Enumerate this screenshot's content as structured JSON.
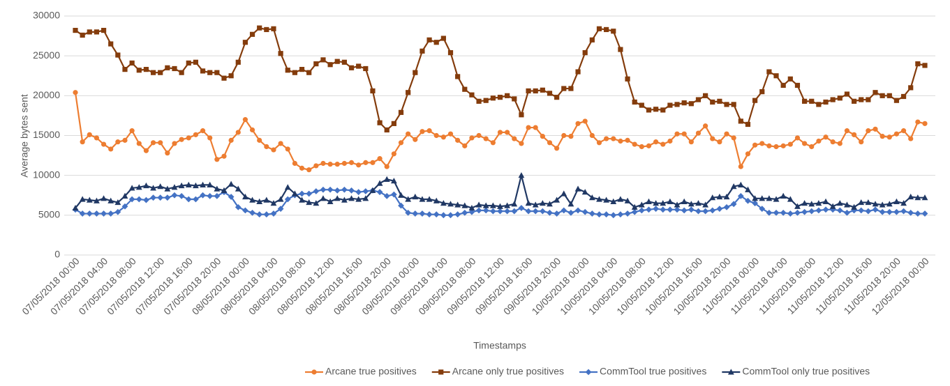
{
  "chart_data": {
    "type": "line",
    "x_label": "Timestamps",
    "y_label": "Average bytes sent",
    "ylim": [
      0,
      30000
    ],
    "yticks": [
      0,
      5000,
      10000,
      15000,
      20000,
      25000,
      30000
    ],
    "grid": true,
    "legend": "bottom",
    "categories": [
      "07/05/2018 00:00",
      null,
      null,
      null,
      "07/05/2018 04:00",
      null,
      null,
      null,
      "07/05/2018 08:00",
      null,
      null,
      null,
      "07/05/2018 12:00",
      null,
      null,
      null,
      "07/05/2018 16:00",
      null,
      null,
      null,
      "07/05/2018 20:00",
      null,
      null,
      null,
      "08/05/2018 00:00",
      null,
      null,
      null,
      "08/05/2018 04:00",
      null,
      null,
      null,
      "08/05/2018 08:00",
      null,
      null,
      null,
      "08/05/2018 12:00",
      null,
      null,
      null,
      "08/05/2018 16:00",
      null,
      null,
      null,
      "08/05/2018 20:00",
      null,
      null,
      null,
      "09/05/2018 00:00",
      null,
      null,
      null,
      "09/05/2018 04:00",
      null,
      null,
      null,
      "09/05/2018 08:00",
      null,
      null,
      null,
      "09/05/2018 12:00",
      null,
      null,
      null,
      "09/05/2018 16:00",
      null,
      null,
      null,
      "09/05/2018 20:00",
      null,
      null,
      null,
      "10/05/2018 00:00",
      null,
      null,
      null,
      "10/05/2018 04:00",
      null,
      null,
      null,
      "10/05/2018 08:00",
      null,
      null,
      null,
      "10/05/2018 12:00",
      null,
      null,
      null,
      "10/05/2018 16:00",
      null,
      null,
      null,
      "10/05/2018 20:00",
      null,
      null,
      null,
      "11/05/2018 00:00",
      null,
      null,
      null,
      "11/05/2018 04:00",
      null,
      null,
      null,
      "11/05/2018 08:00",
      null,
      null,
      null,
      "11/05/2018 12:00",
      null,
      null,
      null,
      "11/05/2018 16:00",
      null,
      null,
      null,
      "11/05/2018 20:00",
      null,
      null,
      null,
      "12/05/2018 00:00"
    ],
    "series": [
      {
        "name": "Arcane true positives",
        "color": "#ED7D31",
        "marker": "circle",
        "values": [
          20400,
          14200,
          15100,
          14700,
          13900,
          13300,
          14200,
          14400,
          15600,
          14000,
          13100,
          14100,
          14100,
          12800,
          14000,
          14500,
          14700,
          15100,
          15600,
          14700,
          12000,
          12400,
          14400,
          15400,
          17000,
          15700,
          14400,
          13600,
          13200,
          14000,
          13300,
          11500,
          10900,
          10700,
          11200,
          11500,
          11400,
          11400,
          11500,
          11600,
          11300,
          11600,
          11600,
          12100,
          11100,
          12700,
          14100,
          15200,
          14500,
          15500,
          15600,
          15000,
          14800,
          15200,
          14400,
          13700,
          14700,
          15000,
          14600,
          14100,
          15400,
          15400,
          14600,
          14000,
          16000,
          16000,
          14900,
          14100,
          13400,
          15000,
          14900,
          16500,
          16800,
          15000,
          14100,
          14600,
          14600,
          14300,
          14400,
          13900,
          13600,
          13700,
          14200,
          13900,
          14300,
          15200,
          15200,
          14200,
          15300,
          16200,
          14600,
          14200,
          15200,
          14700,
          11100,
          12700,
          13800,
          14000,
          13700,
          13600,
          13700,
          13900,
          14700,
          14000,
          13600,
          14300,
          14800,
          14200,
          14000,
          15600,
          15100,
          14200,
          15600,
          15800,
          14900,
          14800,
          15200,
          15600,
          14600,
          16700,
          16500
        ]
      },
      {
        "name": "Arcane only true positives",
        "color": "#843C0C",
        "marker": "square",
        "values": [
          28200,
          27600,
          28000,
          28000,
          28200,
          26500,
          25100,
          23300,
          24100,
          23200,
          23300,
          22900,
          22900,
          23500,
          23400,
          22900,
          24100,
          24200,
          23100,
          22900,
          22900,
          22200,
          22500,
          24200,
          26700,
          27700,
          28500,
          28300,
          28400,
          25300,
          23200,
          22900,
          23300,
          22900,
          24000,
          24500,
          23900,
          24300,
          24200,
          23500,
          23700,
          23400,
          20600,
          16600,
          15700,
          16500,
          17900,
          20400,
          22900,
          25600,
          27000,
          26700,
          27200,
          25400,
          22400,
          20800,
          20100,
          19300,
          19400,
          19700,
          19800,
          20000,
          19600,
          17600,
          20600,
          20600,
          20700,
          20300,
          19800,
          20900,
          20900,
          23000,
          25400,
          27000,
          28400,
          28300,
          28100,
          25800,
          22100,
          19200,
          18800,
          18200,
          18300,
          18200,
          18800,
          18900,
          19100,
          19000,
          19500,
          20000,
          19200,
          19300,
          18900,
          18900,
          16800,
          16400,
          19400,
          20500,
          23000,
          22500,
          21300,
          22100,
          21300,
          19300,
          19300,
          18900,
          19200,
          19500,
          19700,
          20200,
          19300,
          19500,
          19500,
          20400,
          20000,
          20000,
          19400,
          19900,
          21000,
          24000,
          23800
        ]
      },
      {
        "name": "CommTool true positives",
        "color": "#4472C4",
        "marker": "diamond",
        "values": [
          5700,
          5200,
          5200,
          5200,
          5200,
          5200,
          5400,
          6100,
          7000,
          7000,
          6900,
          7200,
          7200,
          7200,
          7500,
          7400,
          7000,
          7000,
          7500,
          7400,
          7400,
          7900,
          7300,
          6000,
          5600,
          5300,
          5100,
          5100,
          5200,
          5800,
          7000,
          7500,
          7700,
          7700,
          8000,
          8200,
          8200,
          8100,
          8200,
          8100,
          7900,
          8000,
          8100,
          7900,
          7400,
          7600,
          6200,
          5300,
          5200,
          5200,
          5100,
          5100,
          5000,
          5000,
          5100,
          5300,
          5400,
          5600,
          5600,
          5500,
          5500,
          5500,
          5500,
          5900,
          5500,
          5500,
          5500,
          5300,
          5200,
          5600,
          5300,
          5600,
          5400,
          5200,
          5100,
          5100,
          5000,
          5100,
          5200,
          5400,
          5600,
          5700,
          5800,
          5700,
          5700,
          5700,
          5600,
          5700,
          5500,
          5500,
          5600,
          5800,
          6000,
          6400,
          7400,
          6800,
          6500,
          5800,
          5300,
          5300,
          5300,
          5200,
          5300,
          5400,
          5500,
          5600,
          5700,
          5700,
          5600,
          5300,
          5600,
          5600,
          5500,
          5700,
          5400,
          5400,
          5400,
          5500,
          5300,
          5200,
          5200
        ]
      },
      {
        "name": "CommTool only true positives",
        "color": "#203864",
        "marker": "triangle",
        "values": [
          5900,
          7000,
          6900,
          6800,
          7100,
          6800,
          6600,
          7400,
          8400,
          8500,
          8700,
          8400,
          8600,
          8300,
          8500,
          8700,
          8800,
          8700,
          8800,
          8800,
          8300,
          8100,
          8900,
          8300,
          7300,
          6900,
          6700,
          6900,
          6500,
          7000,
          8500,
          7700,
          6900,
          6600,
          6500,
          7100,
          6700,
          7100,
          6900,
          7100,
          7000,
          7100,
          8100,
          9000,
          9500,
          9300,
          7500,
          7000,
          7300,
          7000,
          7000,
          6800,
          6500,
          6400,
          6300,
          6200,
          5900,
          6300,
          6200,
          6200,
          6100,
          6200,
          6400,
          10000,
          6500,
          6300,
          6500,
          6400,
          6900,
          7700,
          6400,
          8300,
          7900,
          7200,
          7000,
          6900,
          6700,
          7000,
          6800,
          6000,
          6300,
          6700,
          6500,
          6500,
          6700,
          6300,
          6700,
          6400,
          6500,
          6300,
          7200,
          7300,
          7300,
          8600,
          8800,
          8200,
          7100,
          7100,
          7100,
          7000,
          7400,
          7000,
          6100,
          6500,
          6400,
          6500,
          6700,
          6100,
          6500,
          6300,
          6000,
          6600,
          6600,
          6400,
          6300,
          6400,
          6700,
          6500,
          7300,
          7200,
          7200
        ]
      }
    ]
  }
}
